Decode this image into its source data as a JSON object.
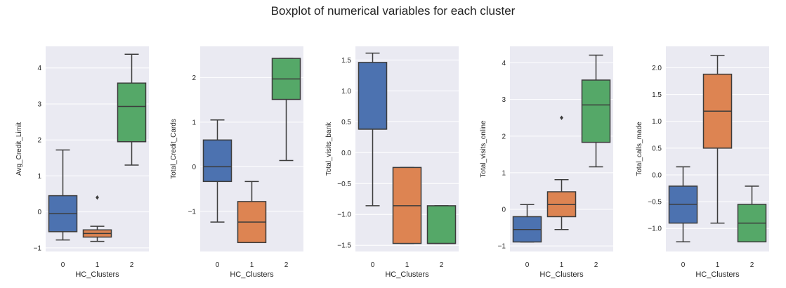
{
  "figure": {
    "title": "Boxplot of numerical variables for each cluster"
  },
  "chart_data": [
    {
      "type": "box",
      "xlabel": "HC_Clusters",
      "ylabel": "Avg_Credit_Limit",
      "categories": [
        "0",
        "1",
        "2"
      ],
      "ylim": [
        -1.1,
        4.6
      ],
      "yticks": [
        -1,
        0,
        1,
        2,
        3,
        4
      ],
      "tick_labels": [
        "−1",
        "0",
        "1",
        "2",
        "3",
        "4"
      ],
      "boxes": [
        {
          "category": "0",
          "whislo": -0.78,
          "q1": -0.55,
          "med": -0.05,
          "q3": 0.45,
          "whishi": 1.72,
          "fliers": [],
          "color": "#4c72b0"
        },
        {
          "category": "1",
          "whislo": -0.82,
          "q1": -0.7,
          "med": -0.6,
          "q3": -0.5,
          "whishi": -0.4,
          "fliers": [
            0.4
          ],
          "color": "#dd8452"
        },
        {
          "category": "2",
          "whislo": 1.3,
          "q1": 1.95,
          "med": 2.93,
          "q3": 3.58,
          "whishi": 4.38,
          "fliers": [],
          "color": "#55a868"
        }
      ]
    },
    {
      "type": "box",
      "xlabel": "HC_Clusters",
      "ylabel": "Total_Credit_Cards",
      "categories": [
        "0",
        "1",
        "2"
      ],
      "ylim": [
        -1.9,
        2.7
      ],
      "yticks": [
        -1,
        0,
        1,
        2
      ],
      "tick_labels": [
        "−1",
        "0",
        "1",
        "2"
      ],
      "boxes": [
        {
          "category": "0",
          "whislo": -1.24,
          "q1": -0.33,
          "med": 0.0,
          "q3": 0.6,
          "whishi": 1.05,
          "fliers": [],
          "color": "#4c72b0"
        },
        {
          "category": "1",
          "whislo": -1.7,
          "q1": -1.7,
          "med": -1.24,
          "q3": -0.78,
          "whishi": -0.33,
          "fliers": [],
          "color": "#dd8452"
        },
        {
          "category": "2",
          "whislo": 0.14,
          "q1": 1.51,
          "med": 1.97,
          "q3": 2.43,
          "whishi": 2.43,
          "fliers": [],
          "color": "#55a868"
        }
      ]
    },
    {
      "type": "box",
      "xlabel": "HC_Clusters",
      "ylabel": "Total_visits_bank",
      "categories": [
        "0",
        "1",
        "2"
      ],
      "ylim": [
        -1.6,
        1.72
      ],
      "yticks": [
        -1.5,
        -1.0,
        -0.5,
        0.0,
        0.5,
        1.0,
        1.5
      ],
      "tick_labels": [
        "−1.5",
        "−1.0",
        "−0.5",
        "0.0",
        "0.5",
        "1.0",
        "1.5"
      ],
      "boxes": [
        {
          "category": "0",
          "whislo": -0.86,
          "q1": 0.38,
          "med": 0.38,
          "q3": 1.46,
          "whishi": 1.61,
          "fliers": [],
          "color": "#4c72b0"
        },
        {
          "category": "1",
          "whislo": -1.47,
          "q1": -1.47,
          "med": -0.86,
          "q3": -0.24,
          "whishi": -0.24,
          "fliers": [],
          "color": "#dd8452"
        },
        {
          "category": "2",
          "whislo": -1.47,
          "q1": -1.47,
          "med": -1.47,
          "q3": -0.86,
          "whishi": -0.86,
          "fliers": [],
          "color": "#55a868"
        }
      ]
    },
    {
      "type": "box",
      "xlabel": "HC_Clusters",
      "ylabel": "Total_visits_online",
      "categories": [
        "0",
        "1",
        "2"
      ],
      "ylim": [
        -1.15,
        4.45
      ],
      "yticks": [
        -1,
        0,
        1,
        2,
        3,
        4
      ],
      "tick_labels": [
        "−1",
        "0",
        "1",
        "2",
        "3",
        "4"
      ],
      "boxes": [
        {
          "category": "0",
          "whislo": -0.89,
          "q1": -0.89,
          "med": -0.55,
          "q3": -0.2,
          "whishi": 0.13,
          "fliers": [],
          "color": "#4c72b0"
        },
        {
          "category": "1",
          "whislo": -0.55,
          "q1": -0.2,
          "med": 0.13,
          "q3": 0.48,
          "whishi": 0.81,
          "fliers": [
            2.5
          ],
          "color": "#dd8452"
        },
        {
          "category": "2",
          "whislo": 1.16,
          "q1": 1.83,
          "med": 2.85,
          "q3": 3.53,
          "whishi": 4.21,
          "fliers": [],
          "color": "#55a868"
        }
      ]
    },
    {
      "type": "box",
      "xlabel": "HC_Clusters",
      "ylabel": "Total_calls_made",
      "categories": [
        "0",
        "1",
        "2"
      ],
      "ylim": [
        -1.43,
        2.4
      ],
      "yticks": [
        -1.0,
        -0.5,
        0.0,
        0.5,
        1.0,
        1.5,
        2.0
      ],
      "tick_labels": [
        "−1.0",
        "−0.5",
        "0.0",
        "0.5",
        "1.0",
        "1.5",
        "2.0"
      ],
      "boxes": [
        {
          "category": "0",
          "whislo": -1.25,
          "q1": -0.9,
          "med": -0.55,
          "q3": -0.21,
          "whishi": 0.15,
          "fliers": [],
          "color": "#4c72b0"
        },
        {
          "category": "1",
          "whislo": -0.9,
          "q1": 0.5,
          "med": 1.19,
          "q3": 1.88,
          "whishi": 2.23,
          "fliers": [],
          "color": "#dd8452"
        },
        {
          "category": "2",
          "whislo": -1.25,
          "q1": -1.25,
          "med": -0.9,
          "q3": -0.55,
          "whishi": -0.21,
          "fliers": [],
          "color": "#55a868"
        }
      ]
    }
  ],
  "style": {
    "plot_background": "#eaeaf2",
    "grid_color": "#ffffff",
    "line_color": "#3c3c3c",
    "text_color": "#262626"
  }
}
